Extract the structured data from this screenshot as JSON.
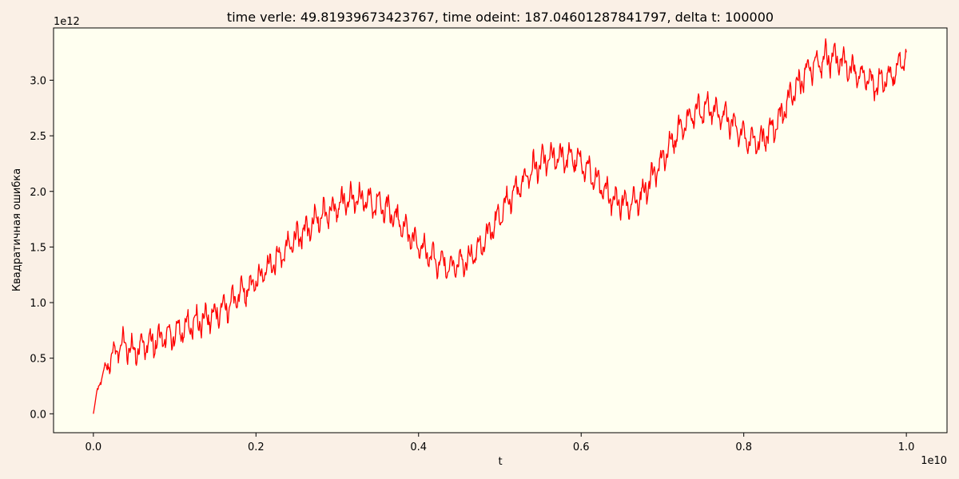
{
  "chart_data": {
    "type": "line",
    "title": "time verle: 49.81939673423767,    time odeint: 187.04601287841797,     delta t: 100000",
    "xlabel": "t",
    "ylabel": "Квадратичная ошибка",
    "x_offset_label": "1e10",
    "y_offset_label": "1e12",
    "xlim": [
      -0.049,
      1.05
    ],
    "ylim": [
      -0.17,
      3.47
    ],
    "x_ticks": [
      0.0,
      0.2,
      0.4,
      0.6,
      0.8,
      1.0
    ],
    "x_tick_labels": [
      "0.0",
      "0.2",
      "0.4",
      "0.6",
      "0.8",
      "1.0"
    ],
    "y_ticks": [
      0.0,
      0.5,
      1.0,
      1.5,
      2.0,
      2.5,
      3.0
    ],
    "y_tick_labels": [
      "0.0",
      "0.5",
      "1.0",
      "1.5",
      "2.0",
      "2.5",
      "3.0"
    ],
    "grid": false,
    "line_color": "#ff0000",
    "plot_background": "#fffff0",
    "figure_background": "#faf0e6",
    "series": [
      {
        "x": [
          0.0,
          0.005,
          0.01,
          0.02,
          0.03,
          0.04,
          0.05,
          0.06,
          0.08,
          0.1,
          0.12,
          0.14,
          0.16,
          0.18,
          0.2,
          0.22,
          0.24,
          0.26,
          0.28,
          0.3,
          0.32,
          0.34,
          0.36,
          0.38,
          0.4,
          0.42,
          0.44,
          0.46,
          0.48,
          0.5,
          0.52,
          0.54,
          0.56,
          0.58,
          0.6,
          0.62,
          0.64,
          0.66,
          0.68,
          0.7,
          0.72,
          0.74,
          0.76,
          0.78,
          0.8,
          0.82,
          0.84,
          0.86,
          0.88,
          0.9,
          0.92,
          0.94,
          0.96,
          0.98,
          1.0
        ],
        "y": [
          0.0,
          0.22,
          0.33,
          0.47,
          0.6,
          0.63,
          0.55,
          0.62,
          0.66,
          0.72,
          0.8,
          0.87,
          0.95,
          1.06,
          1.2,
          1.35,
          1.5,
          1.65,
          1.78,
          1.88,
          1.93,
          1.92,
          1.85,
          1.7,
          1.52,
          1.38,
          1.33,
          1.38,
          1.55,
          1.78,
          2.02,
          2.2,
          2.3,
          2.32,
          2.26,
          2.08,
          1.92,
          1.88,
          2.02,
          2.28,
          2.55,
          2.72,
          2.75,
          2.66,
          2.5,
          2.44,
          2.6,
          2.88,
          3.1,
          3.2,
          3.18,
          3.05,
          2.96,
          3.02,
          3.22
        ]
      }
    ]
  }
}
